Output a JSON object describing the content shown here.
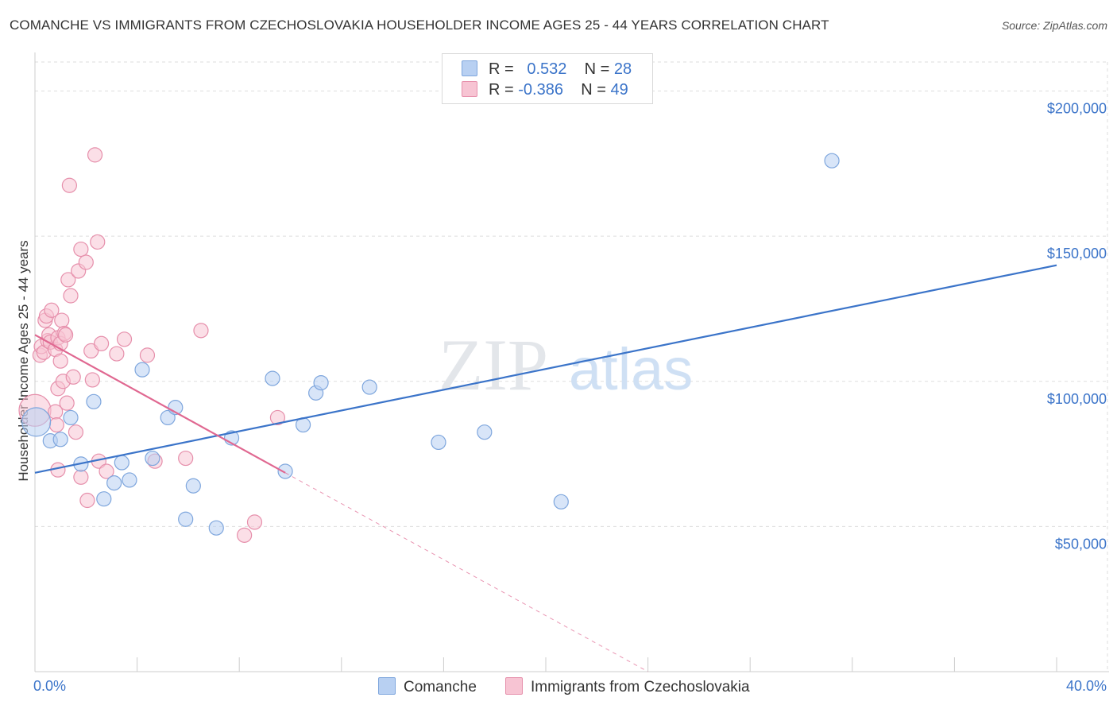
{
  "title": "COMANCHE VS IMMIGRANTS FROM CZECHOSLOVAKIA HOUSEHOLDER INCOME AGES 25 - 44 YEARS CORRELATION CHART",
  "source": "Source: ZipAtlas.com",
  "watermark": {
    "zip": "ZIP",
    "atlas": "atlas"
  },
  "legend": {
    "rows": [
      {
        "r_label": "R =",
        "r_value": "0.532",
        "n_label": "N =",
        "n_value": "28"
      },
      {
        "r_label": "R =",
        "r_value": "-0.386",
        "n_label": "N =",
        "n_value": "49"
      }
    ]
  },
  "colors": {
    "blue_fill": "#b8d0f2",
    "blue_stroke": "#7ea6dd",
    "blue_line": "#3b74c9",
    "pink_fill": "#f7c4d3",
    "pink_stroke": "#e68fab",
    "pink_line": "#e06891",
    "grid": "#dddddd",
    "axis_text": "#3b74c9"
  },
  "chart_data": {
    "type": "scatter",
    "title": "COMANCHE VS IMMIGRANTS FROM CZECHOSLOVAKIA HOUSEHOLDER INCOME AGES 25 - 44 YEARS CORRELATION CHART",
    "xlabel": "",
    "ylabel": "Householder Income Ages 25 - 44 years",
    "xlim": [
      0,
      40
    ],
    "ylim": [
      0,
      210000
    ],
    "x_tick_labels": [
      "0.0%",
      "40.0%"
    ],
    "y_ticks": [
      50000,
      100000,
      150000,
      200000
    ],
    "y_tick_labels": [
      "$50,000",
      "$100,000",
      "$150,000",
      "$200,000"
    ],
    "grid": true,
    "series": [
      {
        "name": "Comanche",
        "r": 0.532,
        "n": 28,
        "trend": {
          "x0": 0,
          "y0": 68500,
          "x1": 40,
          "y1": 140000
        },
        "points": [
          [
            0.05,
            86000
          ],
          [
            0.6,
            79500
          ],
          [
            1.0,
            80000
          ],
          [
            1.4,
            87500
          ],
          [
            1.8,
            71500
          ],
          [
            2.3,
            93000
          ],
          [
            2.7,
            59500
          ],
          [
            3.1,
            65000
          ],
          [
            3.4,
            72000
          ],
          [
            3.7,
            66000
          ],
          [
            4.2,
            104000
          ],
          [
            4.6,
            73500
          ],
          [
            5.2,
            87500
          ],
          [
            5.5,
            91000
          ],
          [
            5.9,
            52500
          ],
          [
            6.2,
            64000
          ],
          [
            7.1,
            49500
          ],
          [
            7.7,
            80500
          ],
          [
            9.3,
            101000
          ],
          [
            9.8,
            69000
          ],
          [
            10.5,
            85000
          ],
          [
            11.0,
            96000
          ],
          [
            11.2,
            99500
          ],
          [
            13.1,
            98000
          ],
          [
            15.8,
            79000
          ],
          [
            17.6,
            82500
          ],
          [
            20.6,
            58500
          ],
          [
            31.2,
            176000
          ]
        ]
      },
      {
        "name": "Immigrants from Czechoslovakia",
        "r": -0.386,
        "n": 49,
        "trend": {
          "x0": 0,
          "y0": 116000,
          "x1": 9.8,
          "y1": 68500,
          "dashed_to_x": 24,
          "dashed_to_y": 0
        },
        "points": [
          [
            0.0,
            90000
          ],
          [
            0.2,
            109000
          ],
          [
            0.25,
            112000
          ],
          [
            0.35,
            110000
          ],
          [
            0.4,
            121000
          ],
          [
            0.45,
            122500
          ],
          [
            0.5,
            114000
          ],
          [
            0.55,
            116000
          ],
          [
            0.6,
            113500
          ],
          [
            0.65,
            124500
          ],
          [
            0.8,
            89500
          ],
          [
            0.8,
            111000
          ],
          [
            0.85,
            85000
          ],
          [
            0.9,
            97500
          ],
          [
            0.9,
            115000
          ],
          [
            0.9,
            69500
          ],
          [
            1.0,
            107000
          ],
          [
            1.0,
            113000
          ],
          [
            1.05,
            121000
          ],
          [
            1.1,
            100000
          ],
          [
            1.15,
            116500
          ],
          [
            1.2,
            116000
          ],
          [
            1.25,
            92500
          ],
          [
            1.3,
            135000
          ],
          [
            1.35,
            167500
          ],
          [
            1.4,
            129500
          ],
          [
            1.5,
            101500
          ],
          [
            1.6,
            82500
          ],
          [
            1.7,
            138000
          ],
          [
            1.8,
            145500
          ],
          [
            1.8,
            67000
          ],
          [
            2.0,
            141000
          ],
          [
            2.05,
            59000
          ],
          [
            2.2,
            110500
          ],
          [
            2.25,
            100500
          ],
          [
            2.35,
            178000
          ],
          [
            2.45,
            148000
          ],
          [
            2.5,
            72500
          ],
          [
            2.6,
            113000
          ],
          [
            2.8,
            69000
          ],
          [
            3.2,
            109500
          ],
          [
            3.5,
            114500
          ],
          [
            4.4,
            109000
          ],
          [
            4.7,
            72500
          ],
          [
            5.9,
            73500
          ],
          [
            6.5,
            117500
          ],
          [
            8.2,
            47000
          ],
          [
            8.6,
            51500
          ],
          [
            9.5,
            87500
          ]
        ]
      }
    ]
  },
  "bottom_legend": [
    {
      "name": "Comanche"
    },
    {
      "name": "Immigrants from Czechoslovakia"
    }
  ]
}
